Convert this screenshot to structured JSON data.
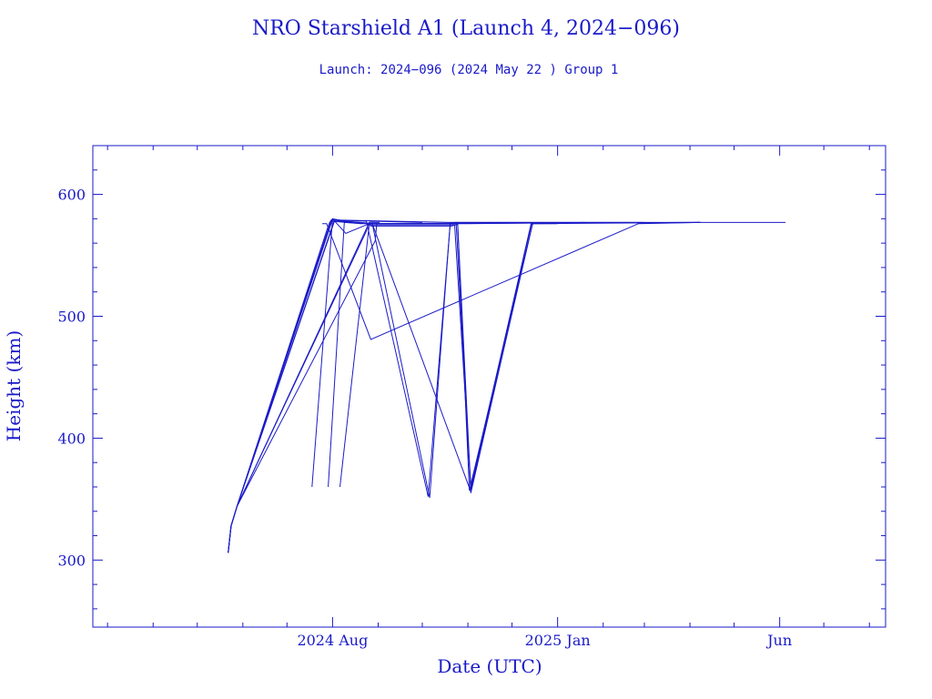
{
  "chart_data": {
    "type": "line",
    "title": "NRO Starshield A1 (Launch 4, 2024−096)",
    "subtitle": "Launch: 2024−096  (2024 May 22 )  Group 1",
    "xlabel": "Date (UTC)",
    "ylabel": "Height (km)",
    "xlim": [
      "2024-02-20",
      "2025-08-12"
    ],
    "ylim": [
      245,
      640
    ],
    "x_ticks": [
      {
        "date": "2024-08-01",
        "label": "2024 Aug"
      },
      {
        "date": "2025-01-01",
        "label": "2025 Jan"
      },
      {
        "date": "2025-06-01",
        "label": "Jun"
      }
    ],
    "x_minor_ticks": [
      "2024-03-01",
      "2024-04-01",
      "2024-05-01",
      "2024-06-01",
      "2024-07-01",
      "2024-09-01",
      "2024-10-01",
      "2024-11-01",
      "2024-12-01",
      "2025-02-01",
      "2025-03-01",
      "2025-04-01",
      "2025-05-01",
      "2025-07-01",
      "2025-08-01"
    ],
    "y_ticks": [
      300,
      400,
      500,
      600
    ],
    "y_minor_step": 20,
    "grid": false,
    "colors": {
      "line": "#1a1ac8",
      "text": "#1a1ac8"
    },
    "series": [
      {
        "x": [
          "2024-05-22",
          "2024-05-24",
          "2024-05-28",
          "2024-07-31",
          "2024-08-20",
          "2025-04-08"
        ],
        "values": [
          306,
          328,
          344,
          578,
          576,
          577
        ]
      },
      {
        "x": [
          "2024-05-22",
          "2024-05-24",
          "2024-05-28",
          "2024-07-30",
          "2024-08-01",
          "2024-08-10",
          "2024-08-30",
          "2024-09-01",
          "2025-04-08"
        ],
        "values": [
          306,
          328,
          344,
          577,
          580,
          578,
          576,
          576,
          577
        ]
      },
      {
        "x": [
          "2024-05-22",
          "2024-05-24",
          "2024-05-28",
          "2024-07-29",
          "2024-07-31",
          "2024-08-24",
          "2024-10-05",
          "2024-10-20",
          "2024-11-01",
          "2025-01-20"
        ],
        "values": [
          306,
          328,
          344,
          574,
          579,
          578,
          352,
          576,
          576,
          577
        ]
      },
      {
        "x": [
          "2024-05-22",
          "2024-05-24",
          "2024-05-28",
          "2024-08-02",
          "2024-08-27",
          "2024-10-01",
          "2024-10-21",
          "2024-10-22",
          "2025-03-01"
        ],
        "values": [
          306,
          328,
          344,
          578,
          576,
          576,
          576,
          577,
          577
        ]
      },
      {
        "x": [
          "2024-05-22",
          "2024-05-24",
          "2024-05-28",
          "2024-07-31",
          "2024-08-01",
          "2024-08-25",
          "2024-08-28",
          "2024-10-06",
          "2024-10-20",
          "2025-06-05"
        ],
        "values": [
          306,
          328,
          344,
          576,
          579,
          576,
          576,
          351,
          577,
          577
        ]
      },
      {
        "x": [
          "2024-05-22",
          "2024-05-24",
          "2024-05-28",
          "2024-08-02",
          "2024-08-03",
          "2024-10-20",
          "2024-10-22",
          "2024-10-25",
          "2024-11-02",
          "2024-12-15"
        ],
        "values": [
          306,
          328,
          344,
          577,
          579,
          577,
          576,
          576,
          357,
          576
        ]
      },
      {
        "x": [
          "2024-05-22",
          "2024-05-24",
          "2024-05-28",
          "2024-08-30",
          "2024-08-31",
          "2024-10-22",
          "2024-10-24",
          "2024-11-03",
          "2024-12-15"
        ],
        "values": [
          306,
          328,
          344,
          562,
          576,
          576,
          577,
          355,
          576
        ]
      },
      {
        "x": [
          "2024-05-22",
          "2024-05-24",
          "2024-05-28",
          "2024-08-26",
          "2024-08-27",
          "2024-10-21",
          "2024-10-23",
          "2024-11-03",
          "2024-12-14",
          "2025-01-01"
        ],
        "values": [
          306,
          328,
          344,
          577,
          574,
          574,
          575,
          360,
          576,
          576
        ]
      },
      {
        "x": [
          "2024-05-22",
          "2024-05-24",
          "2024-05-28",
          "2024-08-24",
          "2024-08-25",
          "2024-10-24",
          "2024-10-25",
          "2024-11-03",
          "2024-12-14",
          "2024-12-16",
          "2025-04-08"
        ],
        "values": [
          306,
          328,
          344,
          570,
          575,
          575,
          576,
          358,
          575,
          576,
          577
        ]
      },
      {
        "x": [
          "2024-07-25",
          "2024-07-28",
          "2024-08-27",
          "2025-02-25",
          "2025-04-08"
        ],
        "values": [
          576,
          576,
          481,
          576,
          577
        ]
      },
      {
        "x": [
          "2024-07-18",
          "2024-08-01",
          "2024-08-10",
          "2024-08-26",
          "2024-08-28",
          "2024-09-02"
        ],
        "values": [
          360,
          580,
          568,
          576,
          577,
          577
        ]
      },
      {
        "x": [
          "2024-07-29",
          "2024-08-09",
          "2024-08-28",
          "2024-11-03",
          "2024-12-14"
        ],
        "values": [
          360,
          577,
          576,
          356,
          576
        ]
      },
      {
        "x": [
          "2024-08-06",
          "2024-08-26",
          "2024-08-27",
          "2024-10-01"
        ],
        "values": [
          360,
          576,
          578,
          577
        ]
      }
    ]
  }
}
